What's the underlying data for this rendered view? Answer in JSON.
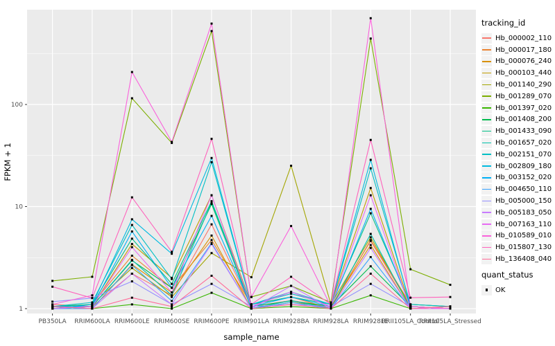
{
  "chart_data": {
    "type": "line",
    "title": "",
    "xlabel": "sample_name",
    "ylabel": "FPKM + 1",
    "y_scale": "log10",
    "y_ticks": [
      1,
      10,
      100
    ],
    "y_tick_labels": [
      "1",
      "10",
      "100"
    ],
    "y_minor_ticks": [
      3.162,
      31.623,
      316.228
    ],
    "ylim": [
      0.9,
      850
    ],
    "grid": true,
    "panel_background": "#EBEBEB",
    "gridline_color": "#FFFFFF",
    "axis_text_color": "#4D4D4D",
    "legend_position": "right",
    "legend_title": "tracking_id",
    "point_legend": {
      "title": "quant_status",
      "label": "OK",
      "marker": "black-square"
    },
    "x_categories": [
      "PB350LA",
      "RRIM600LA",
      "RRIM600LE",
      "RRIM600SE",
      "RRIM600PE",
      "RRIM901LA",
      "RRIM928BA",
      "RRIM928LA",
      "RRIM928LE",
      "RRII105LA_Control",
      "RRII105LA_Stressed"
    ],
    "series": [
      {
        "name": "Hb_000002_110",
        "color": "#F8766D",
        "values": [
          1.1,
          1.05,
          2.2,
          1.35,
          6.7,
          1.05,
          1.2,
          1.05,
          4.6,
          1.05,
          1.0
        ]
      },
      {
        "name": "Hb_000017_180",
        "color": "#EA8331",
        "values": [
          1.0,
          1.1,
          3.3,
          1.6,
          4.7,
          1.1,
          1.3,
          1.0,
          4.7,
          1.1,
          1.05
        ]
      },
      {
        "name": "Hb_000076_240",
        "color": "#D89000",
        "values": [
          1.05,
          1.0,
          2.7,
          1.44,
          5.2,
          1.0,
          1.15,
          1.05,
          4.2,
          1.0,
          1.05
        ]
      },
      {
        "name": "Hb_000103_440",
        "color": "#C09B00",
        "values": [
          1.0,
          1.05,
          4.3,
          2.0,
          12.9,
          1.1,
          1.4,
          1.1,
          15.2,
          1.05,
          1.0
        ]
      },
      {
        "name": "Hb_001140_290",
        "color": "#A3A500",
        "values": [
          1.05,
          1.1,
          2.5,
          1.3,
          3.5,
          2.03,
          25.1,
          1.1,
          5.0,
          1.05,
          1.0
        ]
      },
      {
        "name": "Hb_001289_070",
        "color": "#7CAE00",
        "values": [
          1.87,
          2.05,
          115.0,
          42.0,
          524.0,
          1.3,
          1.67,
          1.15,
          443.0,
          2.43,
          1.71
        ]
      },
      {
        "name": "Hb_001397_020",
        "color": "#39B600",
        "values": [
          1.05,
          1.0,
          1.1,
          1.0,
          1.43,
          1.0,
          1.05,
          1.0,
          1.35,
          1.0,
          1.0
        ]
      },
      {
        "name": "Hb_001408_200",
        "color": "#00BB4E",
        "values": [
          1.0,
          1.05,
          2.96,
          1.6,
          10.6,
          1.05,
          1.19,
          1.05,
          2.6,
          1.05,
          1.0
        ]
      },
      {
        "name": "Hb_001433_090",
        "color": "#00C087",
        "values": [
          1.05,
          1.1,
          4.85,
          1.75,
          11.3,
          1.1,
          1.3,
          1.1,
          8.6,
          1.1,
          1.05
        ]
      },
      {
        "name": "Hb_001657_020",
        "color": "#00C1AB",
        "values": [
          1.0,
          1.05,
          3.0,
          1.35,
          11.0,
          1.0,
          1.2,
          1.0,
          5.4,
          1.0,
          1.0
        ]
      },
      {
        "name": "Hb_002151_070",
        "color": "#00BFC4",
        "values": [
          1.05,
          1.15,
          6.6,
          1.95,
          27.2,
          1.1,
          1.46,
          1.1,
          23.7,
          1.1,
          1.05
        ]
      },
      {
        "name": "Hb_002809_180",
        "color": "#00BAE0",
        "values": [
          1.0,
          1.1,
          7.5,
          3.45,
          29.9,
          1.1,
          1.4,
          1.1,
          28.7,
          1.05,
          1.0
        ]
      },
      {
        "name": "Hb_003152_020",
        "color": "#00B0F6",
        "values": [
          1.05,
          1.05,
          5.7,
          1.6,
          8.1,
          1.05,
          1.3,
          1.05,
          9.5,
          1.05,
          1.0
        ]
      },
      {
        "name": "Hb_004650_110",
        "color": "#35A2FF",
        "values": [
          1.0,
          1.0,
          2.67,
          1.19,
          4.4,
          1.0,
          1.15,
          1.0,
          3.2,
          1.0,
          1.0
        ]
      },
      {
        "name": "Hb_005000_150",
        "color": "#9590FF",
        "values": [
          1.17,
          1.27,
          1.85,
          1.1,
          1.75,
          1.05,
          1.1,
          1.05,
          1.75,
          1.05,
          1.0
        ]
      },
      {
        "name": "Hb_005183_050",
        "color": "#C77CFF",
        "values": [
          1.05,
          1.0,
          2.2,
          1.1,
          4.3,
          1.0,
          1.67,
          1.0,
          3.93,
          1.0,
          1.0
        ]
      },
      {
        "name": "Hb_007163_110",
        "color": "#E76BF3",
        "values": [
          1.0,
          1.05,
          4.0,
          1.44,
          12.9,
          1.05,
          1.46,
          1.05,
          12.9,
          1.0,
          1.0
        ]
      },
      {
        "name": "Hb_010589_010",
        "color": "#FA62DB",
        "values": [
          1.1,
          1.35,
          208.0,
          43.0,
          620.0,
          1.3,
          6.45,
          1.05,
          700.0,
          1.05,
          1.0
        ]
      },
      {
        "name": "Hb_015807_130",
        "color": "#FF62BC",
        "values": [
          1.64,
          1.27,
          12.3,
          3.6,
          46.0,
          1.1,
          2.05,
          1.1,
          45.0,
          1.28,
          1.3
        ]
      },
      {
        "name": "Hb_136408_040",
        "color": "#FF6A98",
        "values": [
          1.05,
          1.0,
          1.28,
          1.05,
          2.1,
          1.0,
          1.1,
          1.0,
          2.2,
          1.0,
          1.05
        ]
      }
    ]
  }
}
